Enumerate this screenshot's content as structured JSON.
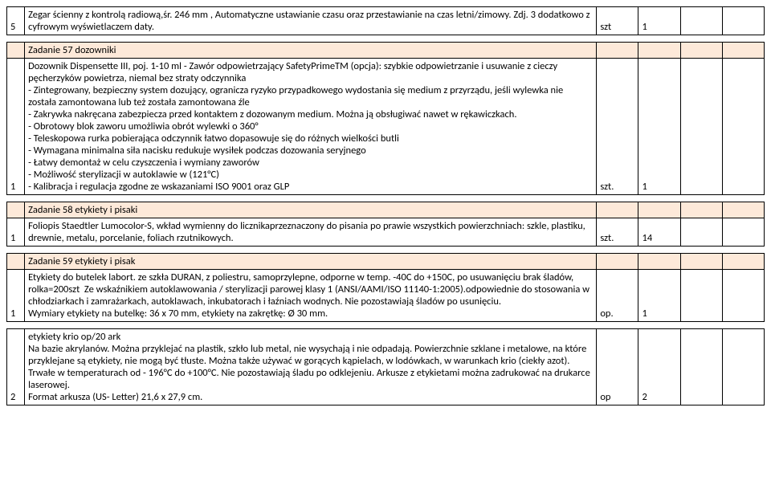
{
  "colors": {
    "header_bg": "#fde9d9",
    "border": "#000000",
    "text": "#000000",
    "bg": "#ffffff"
  },
  "font": {
    "family": "Calibri, Arial, sans-serif",
    "size_pt": 10
  },
  "row_top": {
    "num": "5",
    "desc": "Zegar ścienny z kontrolą radiową,śr. 246 mm , Automatyczne ustawianie czasu oraz przestawianie na czas letni/zimowy. Zdj. 3 dodatkowo z cyfrowym wyświetlaczem daty.",
    "unit": "szt",
    "qty": "1"
  },
  "task57": {
    "title": "Zadanie 57 dozowniki",
    "num": "1",
    "desc": "Dozownik Dispensette III, poj. 1-10 ml - Zawór odpowietrzający SafetyPrimeTM (opcja): szybkie odpowietrzanie i usuwanie z cieczy pęcherzyków powietrza, niemal bez straty odczynnika\n- Zintegrowany, bezpieczny system dozujący, ogranicza ryzyko przypadkowego wydostania się medium z przyrządu, jeśli wylewka nie została zamontowana lub też została zamontowana źle\n- Zakrywka nakręcana zabezpiecza przed kontaktem z dozowanym medium. Można ją obsługiwać nawet w rękawiczkach.\n- Obrotowy blok zaworu umożliwia obrót wylewki o 360°\n- Teleskopowa rurka pobierająca odczynnik łatwo dopasowuje się do różnych wielkości butli\n- Wymagana minimalna siła nacisku redukuje wysiłek podczas dozowania seryjnego\n- Łatwy demontaż w celu czyszczenia i wymiany zaworów\n- Możliwość sterylizacji w autoklawie w (121°C)\n- Kalibracja i regulacja zgodne ze wskazaniami ISO 9001 oraz GLP",
    "unit": "szt.",
    "qty": "1"
  },
  "task58": {
    "title": "Zadanie 58 etykiety i pisaki",
    "num": "1",
    "desc": "Foliopis Staedtler Lumocolor-S, wkład wymienny do licznikaprzeznaczony do pisania po prawie wszystkich powierzchniach: szkle, plastiku, drewnie, metalu, porcelanie, foliach rzutnikowych.",
    "unit": "szt.",
    "qty": "14"
  },
  "task59": {
    "title": "Zadanie 59 etykiety i pisak",
    "row1": {
      "num": "1",
      "desc": "Etykiety do butelek labort. ze szkła DURAN, z poliestru, samoprzylepne, odporne w temp. -40C do +150C, po usuwanięciu brak śladów, rolka=200szt  Ze wskaźnikiem autoklawowania / sterylizacji parowej klasy 1 (ANSI/AAMI/ISO 11140-1:2005).odpowiednie do stosowania w chłodziarkach i zamrażarkach, autoklawach, inkubatorach i łaźniach wodnych. Nie pozostawiają śladów po usunięciu.\nWymiary etykiety na butelkę: 36 x 70 mm, etykiety na zakrętkę: Ø 30 mm.",
      "unit": "op.",
      "qty": "1"
    },
    "row2": {
      "num": "2",
      "desc": "etykiety krio op/20 ark\nNa bazie akrylanów. Można przyklejać na plastik, szkło lub metal, nie wysychają i nie odpadają. Powierzchnie szklane i metalowe, na które przyklejane są etykiety, nie mogą być tłuste. Można także używać w gorących kąpielach, w lodówkach, w warunkach krio (ciekły azot). Trwałe w temperaturach od - 196°C do +100°C. Nie pozostawiają śladu po odklejeniu. Arkusze z etykietami można zadrukować na drukarce laserowej.\nFormat arkusza (US- Letter) 21,6 x 27,9 cm.",
      "unit": "op",
      "qty": "2"
    }
  }
}
